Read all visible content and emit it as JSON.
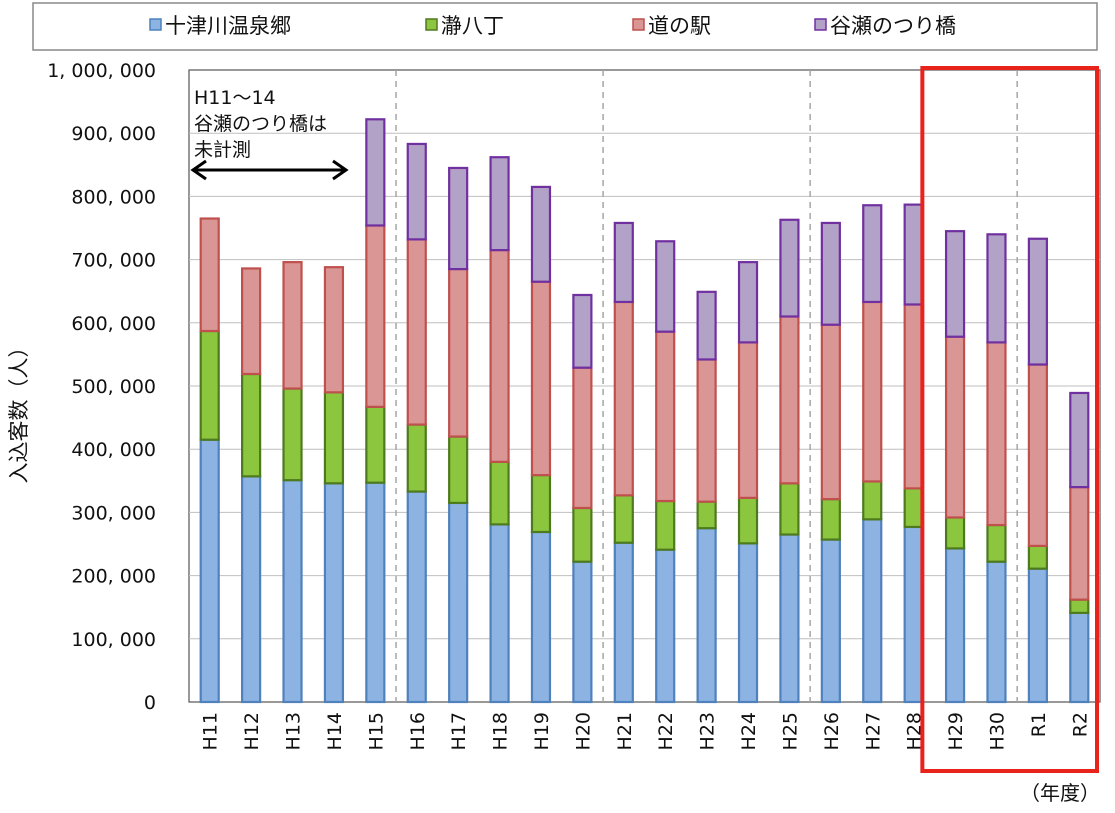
{
  "chart_data": {
    "type": "bar",
    "stacked": true,
    "ylabel": "入込客数（人）",
    "xunit": "（年度）",
    "ylim": [
      0,
      1000000
    ],
    "yticks": [
      "0",
      "100, 000",
      "200, 000",
      "300, 000",
      "400, 000",
      "500, 000",
      "600, 000",
      "700, 000",
      "800, 000",
      "900, 000",
      "1, 000, 000"
    ],
    "categories": [
      "H11",
      "H12",
      "H13",
      "H14",
      "H15",
      "H16",
      "H17",
      "H18",
      "H19",
      "H20",
      "H21",
      "H22",
      "H23",
      "H24",
      "H25",
      "H26",
      "H27",
      "H28",
      "H29",
      "H30",
      "R1",
      "R2"
    ],
    "series": [
      {
        "name": "十津川温泉郷",
        "color": "#8db3e2",
        "border": "#4f81bd",
        "values": [
          415000,
          357000,
          351000,
          346000,
          347000,
          333000,
          315000,
          281000,
          269000,
          222000,
          252000,
          241000,
          275000,
          251000,
          265000,
          257000,
          289000,
          277000,
          243000,
          222000,
          211000,
          141000
        ]
      },
      {
        "name": "瀞八丁",
        "color": "#8cc63f",
        "border": "#4e7a1e",
        "values": [
          172000,
          162000,
          145000,
          144000,
          120000,
          106000,
          105000,
          99000,
          90000,
          85000,
          75000,
          77000,
          42000,
          72000,
          81000,
          64000,
          60000,
          61000,
          49000,
          58000,
          36000,
          21000
        ]
      },
      {
        "name": "道の駅",
        "color": "#da9694",
        "border": "#c0504d",
        "values": [
          178000,
          167000,
          200000,
          198000,
          287000,
          293000,
          265000,
          335000,
          306000,
          222000,
          306000,
          268000,
          225000,
          246000,
          264000,
          276000,
          284000,
          291000,
          286000,
          289000,
          287000,
          178000
        ]
      },
      {
        "name": "谷瀬のつり橋",
        "color": "#b3a2c7",
        "border": "#7030a0",
        "values": [
          0,
          0,
          0,
          0,
          168000,
          151000,
          160000,
          147000,
          150000,
          115000,
          125000,
          143000,
          107000,
          127000,
          153000,
          161000,
          153000,
          158000,
          167000,
          171000,
          199000,
          149000
        ]
      }
    ],
    "grid": true,
    "legend": "top",
    "dashed_separators_after": [
      "H15",
      "H20",
      "H25",
      "H30"
    ],
    "annotation": {
      "lines": [
        "H11～14",
        "谷瀬のつり橋は",
        "未計測"
      ],
      "arrow": "double-horizontal"
    },
    "highlight": {
      "categories": [
        "H29",
        "H30",
        "R1",
        "R2"
      ],
      "color": "#e8231c"
    }
  }
}
